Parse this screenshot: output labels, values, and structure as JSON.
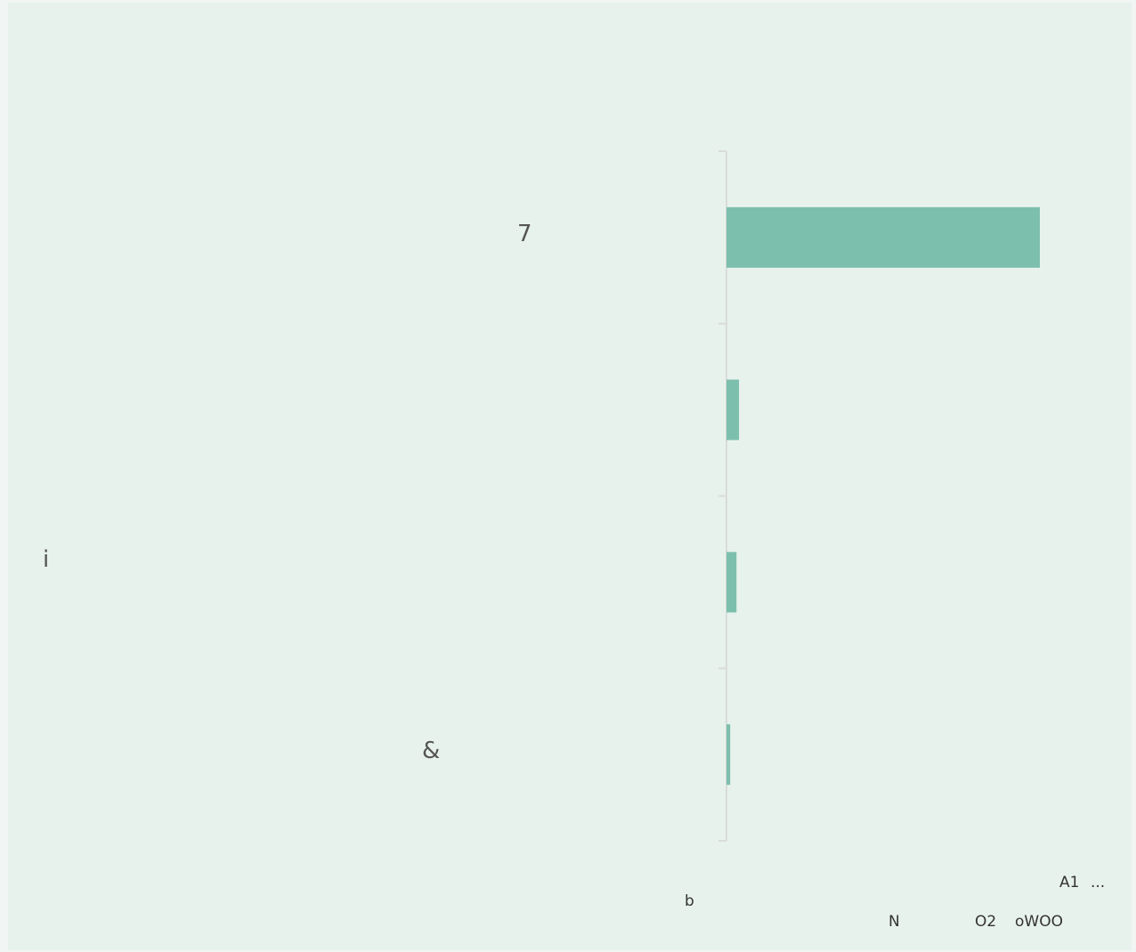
{
  "chart_data": {
    "type": "bar",
    "orientation": "horizontal",
    "categories": [
      "7",
      "",
      "",
      "&"
    ],
    "values": [
      100,
      4,
      3.2,
      1.2
    ],
    "xlim": [
      0,
      100
    ],
    "grid": false,
    "bar_color": "#7dbfad",
    "axis_color": "#d9dcda",
    "stray_labels": {
      "left_glyph": "i",
      "bottom_glyph": "b",
      "footer_a": "A1",
      "footer_dots": "...",
      "footer_n": "N",
      "footer_o2": "O2",
      "footer_owoo": "oWOO"
    }
  }
}
